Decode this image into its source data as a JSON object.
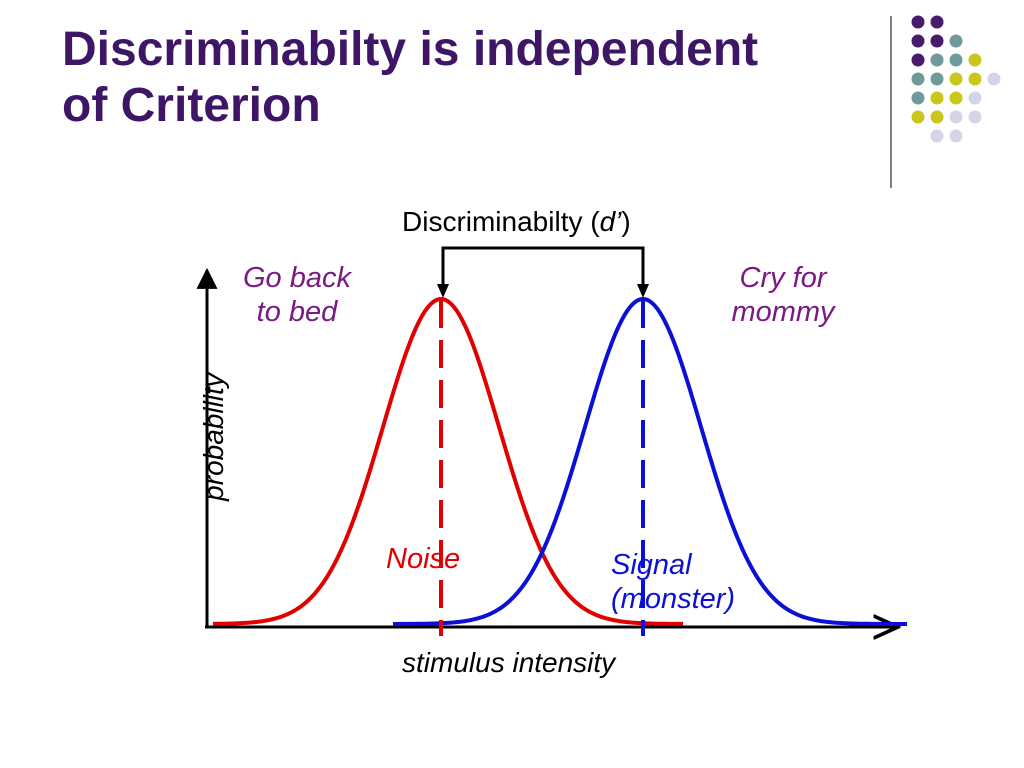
{
  "slide": {
    "title_lines": [
      "Discriminabilty is independent",
      "of Criterion"
    ]
  },
  "diagram": {
    "discriminability_text": "Discriminabilty (",
    "d_prime": "d’",
    "close_paren": ")",
    "left_response": [
      "Go back",
      "to bed"
    ],
    "right_response": [
      "Cry for",
      "mommy"
    ],
    "noise_label": "Noise",
    "signal_label": [
      "Signal",
      "(monster)"
    ],
    "x_axis_label": "stimulus intensity",
    "y_axis_label": "probability"
  },
  "colors": {
    "title": "#3f1566",
    "noise": "#e00000",
    "signal": "#0a10d6",
    "response_text": "#7a1a83",
    "dot_purple": "#4a1a6b",
    "dot_teal": "#6e9a9c",
    "dot_yellow": "#c9c71b",
    "dot_lavender": "#d4d4e6"
  },
  "decoration": {
    "dot_grid_pattern": [
      "PP..",
      "PPT.",
      "PTTY",
      "TTYYL",
      "TYYL",
      "YYLL",
      ".LL."
    ]
  }
}
